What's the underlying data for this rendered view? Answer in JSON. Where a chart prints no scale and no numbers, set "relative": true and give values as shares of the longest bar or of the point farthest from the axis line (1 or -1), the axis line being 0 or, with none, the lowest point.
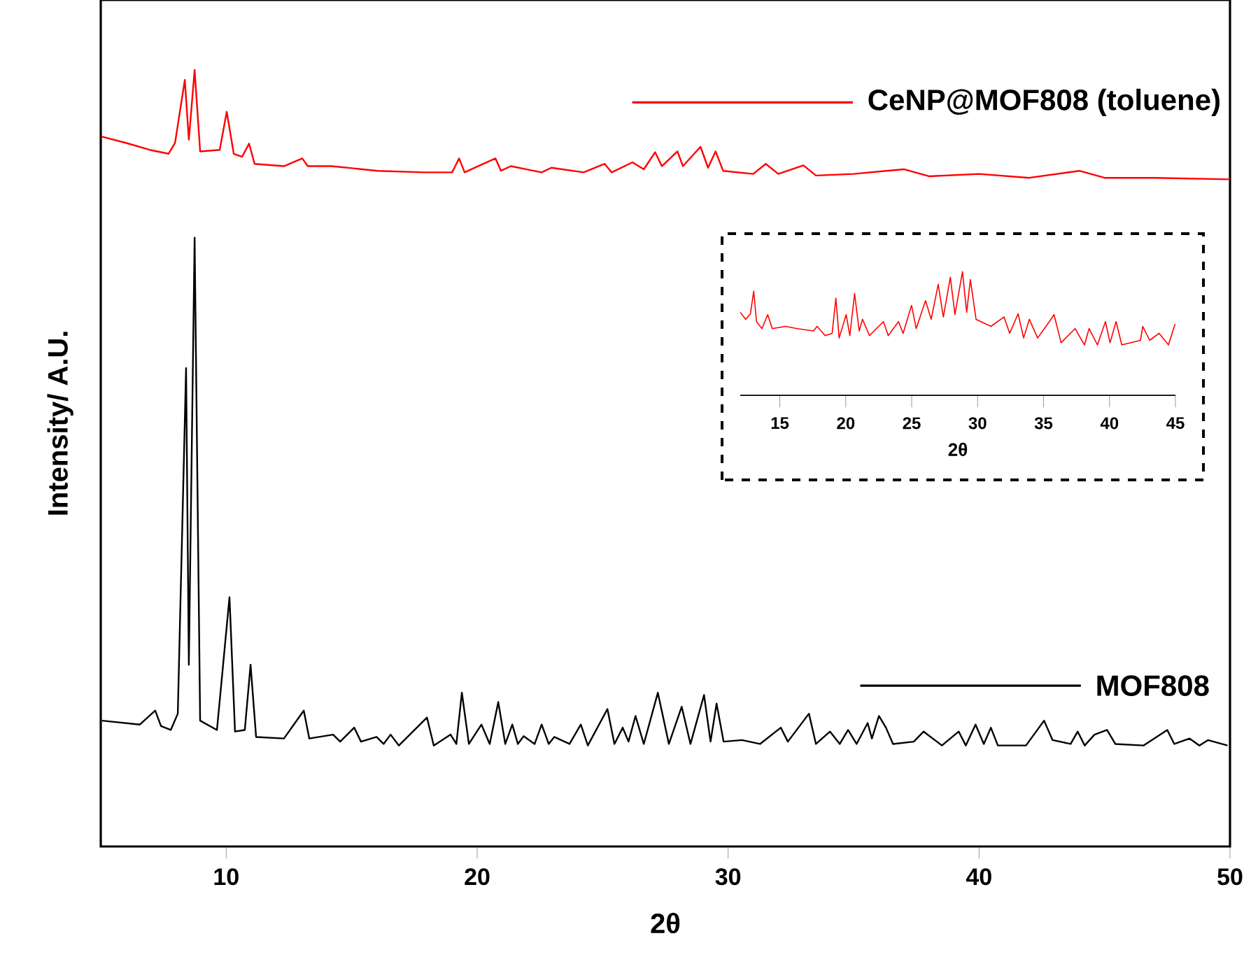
{
  "chart_data": [
    {
      "type": "line",
      "xlabel": "2θ",
      "ylabel": "Intensity/ A.U.",
      "relative": true,
      "xlim": [
        5,
        50
      ],
      "xticks": [
        10,
        20,
        30,
        40,
        50
      ],
      "series": [
        {
          "name": "CeNP@MOF808 (toluene)",
          "color": "#ff0000",
          "x": [
            5.05,
            6.0,
            6.95,
            7.7,
            7.96,
            8.35,
            8.51,
            8.74,
            8.96,
            9.74,
            10.02,
            10.3,
            10.63,
            10.91,
            11.13,
            12.3,
            13.03,
            13.25,
            14.2,
            16.04,
            17.88,
            19.0,
            19.28,
            19.5,
            20.11,
            20.73,
            20.95,
            21.34,
            22.57,
            22.96,
            24.24,
            25.08,
            25.36,
            26.19,
            26.64,
            27.09,
            27.36,
            27.98,
            28.2,
            28.9,
            29.2,
            29.5,
            29.8,
            31.0,
            31.5,
            32.0,
            33.0,
            33.5,
            35.0,
            37.0,
            38.0,
            40.0,
            42.0,
            44.0,
            45.0,
            47.0,
            50.0
          ],
          "values": [
            0.914,
            0.906,
            0.897,
            0.892,
            0.906,
            0.987,
            0.91,
            1.0,
            0.895,
            0.897,
            0.946,
            0.892,
            0.888,
            0.905,
            0.879,
            0.876,
            0.886,
            0.876,
            0.876,
            0.87,
            0.868,
            0.868,
            0.886,
            0.868,
            0.877,
            0.886,
            0.87,
            0.876,
            0.868,
            0.874,
            0.868,
            0.879,
            0.868,
            0.881,
            0.872,
            0.894,
            0.876,
            0.895,
            0.876,
            0.901,
            0.874,
            0.895,
            0.87,
            0.866,
            0.879,
            0.866,
            0.877,
            0.864,
            0.866,
            0.872,
            0.863,
            0.866,
            0.861,
            0.87,
            0.861,
            0.861,
            0.859
          ]
        },
        {
          "name": "MOF808",
          "color": "#000000",
          "x": [
            5.05,
            6.56,
            7.17,
            7.4,
            7.79,
            8.07,
            8.4,
            8.51,
            8.74,
            8.96,
            9.63,
            10.13,
            10.35,
            10.74,
            10.97,
            11.19,
            12.3,
            13.09,
            13.31,
            14.26,
            14.54,
            15.1,
            15.37,
            15.99,
            16.27,
            16.55,
            16.88,
            18.0,
            18.27,
            18.94,
            19.17,
            19.39,
            19.67,
            20.17,
            20.5,
            20.84,
            21.12,
            21.4,
            21.62,
            21.85,
            22.29,
            22.57,
            22.85,
            23.07,
            23.68,
            24.13,
            24.41,
            25.19,
            25.47,
            25.8,
            26.03,
            26.31,
            26.64,
            27.2,
            27.64,
            28.15,
            28.5,
            29.04,
            29.3,
            29.54,
            29.82,
            30.55,
            31.27,
            32.1,
            32.38,
            33.22,
            33.5,
            34.06,
            34.45,
            34.78,
            35.12,
            35.56,
            35.73,
            36.01,
            36.29,
            36.57,
            37.4,
            37.79,
            38.52,
            39.19,
            39.47,
            39.86,
            40.19,
            40.47,
            40.75,
            41.87,
            42.59,
            42.93,
            43.65,
            43.93,
            44.21,
            44.6,
            45.1,
            45.43,
            46.55,
            47.5,
            47.78,
            48.39,
            48.78,
            49.12,
            49.9
          ],
          "values": [
            0.162,
            0.157,
            0.175,
            0.155,
            0.15,
            0.171,
            0.616,
            0.234,
            0.784,
            0.162,
            0.15,
            0.321,
            0.148,
            0.15,
            0.234,
            0.141,
            0.139,
            0.175,
            0.139,
            0.144,
            0.135,
            0.153,
            0.135,
            0.141,
            0.132,
            0.144,
            0.13,
            0.166,
            0.13,
            0.144,
            0.132,
            0.198,
            0.132,
            0.157,
            0.132,
            0.186,
            0.132,
            0.157,
            0.132,
            0.142,
            0.132,
            0.157,
            0.132,
            0.141,
            0.132,
            0.157,
            0.13,
            0.177,
            0.132,
            0.153,
            0.135,
            0.168,
            0.132,
            0.198,
            0.132,
            0.18,
            0.132,
            0.195,
            0.135,
            0.184,
            0.135,
            0.137,
            0.132,
            0.153,
            0.135,
            0.171,
            0.132,
            0.148,
            0.132,
            0.15,
            0.132,
            0.159,
            0.139,
            0.168,
            0.153,
            0.132,
            0.135,
            0.148,
            0.13,
            0.148,
            0.13,
            0.157,
            0.132,
            0.153,
            0.13,
            0.13,
            0.162,
            0.137,
            0.132,
            0.148,
            0.13,
            0.144,
            0.15,
            0.132,
            0.13,
            0.15,
            0.132,
            0.139,
            0.13,
            0.137,
            0.13
          ]
        }
      ]
    },
    {
      "type": "line",
      "xlabel": "2θ",
      "relative": true,
      "xlim": [
        12,
        45
      ],
      "xticks": [
        15,
        20,
        25,
        30,
        35,
        40,
        45
      ],
      "series": [
        {
          "color": "#ff0000",
          "x": [
            12.0,
            12.41,
            12.77,
            13.02,
            13.23,
            13.65,
            14.08,
            14.43,
            15.43,
            16.31,
            17.55,
            17.83,
            18.44,
            18.97,
            19.25,
            19.5,
            20.03,
            20.31,
            20.67,
            21.02,
            21.27,
            21.8,
            22.86,
            23.22,
            24.0,
            24.35,
            24.99,
            25.34,
            26.05,
            26.48,
            27.01,
            27.4,
            27.93,
            28.28,
            28.85,
            29.17,
            29.45,
            29.88,
            31.01,
            32.0,
            32.43,
            33.07,
            33.49,
            33.92,
            34.55,
            35.44,
            35.79,
            36.33,
            37.39,
            38.1,
            38.45,
            39.09,
            39.69,
            40.04,
            40.5,
            40.93,
            42.35,
            42.52,
            43.05,
            43.76,
            44.47,
            44.97
          ],
          "values": [
            0.672,
            0.615,
            0.66,
            0.842,
            0.596,
            0.54,
            0.653,
            0.54,
            0.558,
            0.54,
            0.521,
            0.558,
            0.483,
            0.502,
            0.785,
            0.464,
            0.653,
            0.483,
            0.823,
            0.521,
            0.615,
            0.483,
            0.596,
            0.483,
            0.596,
            0.502,
            0.728,
            0.54,
            0.766,
            0.615,
            0.898,
            0.634,
            0.955,
            0.653,
            1.0,
            0.672,
            0.936,
            0.615,
            0.558,
            0.634,
            0.502,
            0.66,
            0.464,
            0.615,
            0.464,
            0.596,
            0.653,
            0.426,
            0.54,
            0.408,
            0.54,
            0.408,
            0.596,
            0.426,
            0.596,
            0.408,
            0.445,
            0.558,
            0.445,
            0.502,
            0.408,
            0.577
          ]
        }
      ]
    }
  ]
}
